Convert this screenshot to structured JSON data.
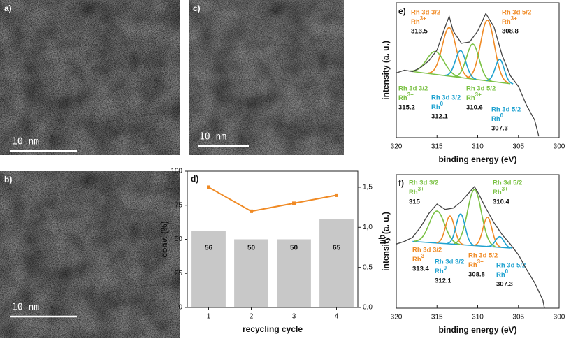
{
  "images": [
    {
      "label": "a)",
      "scale_bar": "10 nm"
    },
    {
      "label": "b)",
      "scale_bar": "10 nm"
    },
    {
      "label": "c)",
      "scale_bar": "10 nm"
    }
  ],
  "chart_data": [
    {
      "type": "bar",
      "label": "d)",
      "categories": [
        "1",
        "2",
        "3",
        "4"
      ],
      "xlabel": "recycling cycle",
      "ylabel": "conv. (%)",
      "y2label": "q/l",
      "ylim": [
        0,
        100
      ],
      "yticks": [
        0,
        25,
        50,
        75,
        100
      ],
      "y2lim": [
        0,
        1.7
      ],
      "y2ticks": [
        {
          "value": 0,
          "label": "0,0"
        },
        {
          "value": 0.5,
          "label": "0,5"
        },
        {
          "value": 1.0,
          "label": "1,0"
        },
        {
          "value": 1.5,
          "label": "1,5"
        }
      ],
      "series": [
        {
          "type": "bar",
          "color": "#c8c8c8",
          "values": [
            56,
            50,
            50,
            65
          ]
        },
        {
          "type": "line",
          "axis": "y2",
          "color": "#f08a24",
          "values": [
            1.5,
            1.2,
            1.3,
            1.4
          ]
        }
      ]
    },
    {
      "type": "xps",
      "label": "e)",
      "xlabel": "binding energy (eV)",
      "ylabel": "intensity (a. u.)",
      "xlim": [
        320,
        300
      ],
      "xticks": [
        320,
        315,
        310,
        305,
        300
      ],
      "ylim": [
        0,
        100
      ],
      "spectrum": {
        "color": "#444444",
        "x": [
          320,
          319,
          318,
          317,
          316,
          315,
          314,
          313.5,
          313,
          312,
          311,
          310,
          309,
          308,
          307,
          306,
          305,
          304,
          303,
          302.5
        ],
        "values": [
          48,
          50,
          49,
          52,
          57,
          65,
          82,
          90,
          79,
          70,
          71,
          79,
          92,
          82,
          61,
          46,
          38,
          24,
          13,
          1
        ]
      },
      "background": {
        "color": "#7ac143",
        "x": [
          318,
          306
        ],
        "values": [
          49,
          40
        ]
      },
      "components": [
        {
          "orbital": "Rh 3d 3/2",
          "species": {
            "base": "Rh",
            "sup": "3+"
          },
          "energy": 313.5,
          "height": 36,
          "fwhm": 2.0,
          "color": "#f08a24"
        },
        {
          "orbital": "Rh 3d 5/2",
          "species": {
            "base": "Rh",
            "sup": "3+"
          },
          "energy": 308.8,
          "height": 45,
          "fwhm": 2.0,
          "color": "#f08a24"
        },
        {
          "orbital": "Rh 3d 3/2",
          "species": {
            "base": "Rh",
            "sup": "3+"
          },
          "energy": 315.2,
          "height": 17,
          "fwhm": 2.5,
          "color": "#7ac143"
        },
        {
          "orbital": "Rh 3d 3/2",
          "species": {
            "base": "Rh",
            "sup": "0"
          },
          "energy": 312.1,
          "height": 20,
          "fwhm": 1.5,
          "color": "#1fa2d0"
        },
        {
          "orbital": "Rh 3d 5/2",
          "species": {
            "base": "Rh",
            "sup": "3+"
          },
          "energy": 310.6,
          "height": 26,
          "fwhm": 1.8,
          "color": "#7ac143"
        },
        {
          "orbital": "Rh 3d 5/2",
          "species": {
            "base": "Rh",
            "sup": "0"
          },
          "energy": 307.3,
          "height": 17,
          "fwhm": 1.3,
          "color": "#1fa2d0"
        }
      ]
    },
    {
      "type": "xps",
      "label": "f)",
      "xlabel": "binding energy (eV)",
      "ylabel": "intensity (a. u.)",
      "xlim": [
        320,
        300
      ],
      "xticks": [
        320,
        315,
        310,
        305,
        300
      ],
      "ylim": [
        0,
        100
      ],
      "spectrum": {
        "color": "#444444",
        "x": [
          320,
          319,
          318,
          317,
          316,
          315,
          314,
          313,
          312,
          311,
          310.4,
          310,
          309,
          308,
          307,
          306,
          305,
          304,
          303,
          302,
          301.8
        ],
        "values": [
          48,
          50,
          53,
          61,
          71,
          78,
          74,
          75,
          80,
          87,
          91,
          87,
          75,
          64,
          55,
          48,
          40,
          29,
          19,
          6,
          0
        ]
      },
      "background": {
        "color": "#1fa2d0",
        "x": [
          318,
          306
        ],
        "values": [
          50,
          45
        ]
      },
      "components": [
        {
          "orbital": "Rh 3d 3/2",
          "species": {
            "base": "Rh",
            "sup": "3+"
          },
          "energy": 315.0,
          "height": 24,
          "fwhm": 2.2,
          "color": "#7ac143"
        },
        {
          "orbital": "Rh 3d 5/2",
          "species": {
            "base": "Rh",
            "sup": "3+"
          },
          "energy": 310.4,
          "height": 42,
          "fwhm": 2.0,
          "color": "#7ac143"
        },
        {
          "orbital": "Rh 3d 3/2",
          "species": {
            "base": "Rh",
            "sup": "3+"
          },
          "energy": 313.4,
          "height": 21,
          "fwhm": 1.3,
          "color": "#f08a24"
        },
        {
          "orbital": "Rh 3d 3/2",
          "species": {
            "base": "Rh",
            "sup": "0"
          },
          "energy": 312.1,
          "height": 23,
          "fwhm": 1.3,
          "color": "#1fa2d0"
        },
        {
          "orbital": "Rh 3d 5/2",
          "species": {
            "base": "Rh",
            "sup": "3+"
          },
          "energy": 308.8,
          "height": 22,
          "fwhm": 1.3,
          "color": "#f08a24"
        },
        {
          "orbital": "Rh 3d 5/2",
          "species": {
            "base": "Rh",
            "sup": "0"
          },
          "energy": 307.3,
          "height": 8,
          "fwhm": 1.2,
          "color": "#1fa2d0"
        }
      ]
    }
  ]
}
